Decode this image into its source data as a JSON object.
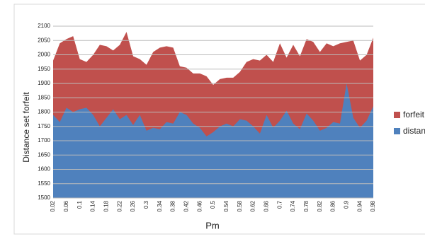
{
  "chart_data": {
    "type": "area",
    "x_label": "Pm",
    "y_label": "Distance set forfeit",
    "categories": [
      "0.02",
      null,
      "0.06",
      null,
      "0.1",
      null,
      "0.14",
      null,
      "0.18",
      null,
      "0.22",
      null,
      "0.26",
      null,
      "0.3",
      null,
      "0.34",
      null,
      "0.38",
      null,
      "0.42",
      null,
      "0.46",
      null,
      "0.5",
      null,
      "0.54",
      null,
      "0.58",
      null,
      "0.62",
      null,
      "0.66",
      null,
      "0.7",
      null,
      "0.74",
      null,
      "0.78",
      null,
      "0.82",
      null,
      "0.86",
      null,
      "0.9",
      null,
      "0.94",
      null,
      "0.98"
    ],
    "series": [
      {
        "name": "forfeit",
        "color": "#c0504d",
        "values": [
          1980,
          2040,
          2055,
          2065,
          1985,
          1975,
          2000,
          2035,
          2030,
          2015,
          2035,
          2080,
          1995,
          1985,
          1965,
          2010,
          2025,
          2030,
          2025,
          1960,
          1955,
          1935,
          1935,
          1925,
          1895,
          1915,
          1920,
          1920,
          1940,
          1975,
          1985,
          1980,
          2000,
          1975,
          2040,
          1990,
          2035,
          1995,
          2055,
          2045,
          2010,
          2040,
          2030,
          2040,
          2045,
          2050,
          1980,
          2000,
          2060
        ]
      },
      {
        "name": "distance",
        "color": "#4f81bd",
        "values": [
          1790,
          1765,
          1815,
          1800,
          1810,
          1815,
          1790,
          1750,
          1780,
          1810,
          1775,
          1790,
          1755,
          1790,
          1735,
          1745,
          1740,
          1765,
          1760,
          1800,
          1790,
          1760,
          1745,
          1715,
          1730,
          1750,
          1760,
          1750,
          1775,
          1770,
          1750,
          1725,
          1790,
          1745,
          1770,
          1805,
          1760,
          1740,
          1795,
          1770,
          1735,
          1745,
          1765,
          1760,
          1900,
          1780,
          1745,
          1770,
          1820
        ]
      }
    ],
    "ylim": [
      1500,
      2100
    ],
    "yticks": [
      1500,
      1550,
      1600,
      1650,
      1700,
      1750,
      1800,
      1850,
      1900,
      1950,
      2000,
      2050,
      2100
    ],
    "grid": true,
    "legend": "right"
  }
}
